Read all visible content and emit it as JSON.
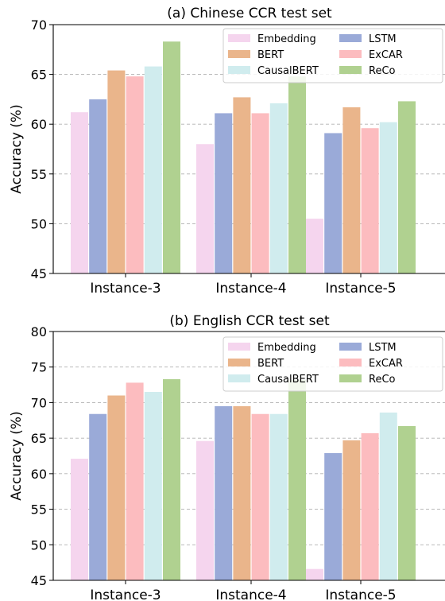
{
  "chart_data": [
    {
      "type": "bar",
      "title": "(a) Chinese CCR test set",
      "ylabel": "Accuracy (%)",
      "xlabel": "",
      "ylim": [
        45,
        70
      ],
      "yticks": [
        45,
        50,
        55,
        60,
        65,
        70
      ],
      "grid": "horizontal dashed",
      "legend_position": "top-right",
      "categories": [
        "Instance-3",
        "Instance-4",
        "Instance-5"
      ],
      "series": [
        {
          "name": "Embedding",
          "color": "#f5d5ee",
          "values": [
            61.2,
            58.0,
            50.5
          ]
        },
        {
          "name": "LSTM",
          "color": "#9aaad8",
          "values": [
            62.5,
            61.1,
            59.1
          ]
        },
        {
          "name": "BERT",
          "color": "#eab58b",
          "values": [
            65.4,
            62.7,
            61.7
          ]
        },
        {
          "name": "ExCAR",
          "color": "#fcbcbf",
          "values": [
            64.8,
            61.1,
            59.6
          ]
        },
        {
          "name": "CausalBERT",
          "color": "#d0ecee",
          "values": [
            65.8,
            62.1,
            60.2
          ]
        },
        {
          "name": "ReCo",
          "color": "#b0d190",
          "values": [
            68.3,
            64.8,
            62.3
          ]
        }
      ]
    },
    {
      "type": "bar",
      "title": "(b) English CCR test set",
      "ylabel": "Accuracy (%)",
      "xlabel": "",
      "ylim": [
        45,
        80
      ],
      "yticks": [
        45,
        50,
        55,
        60,
        65,
        70,
        75,
        80
      ],
      "grid": "horizontal dashed",
      "legend_position": "top-right",
      "categories": [
        "Instance-3",
        "Instance-4",
        "Instance-5"
      ],
      "series": [
        {
          "name": "Embedding",
          "color": "#f5d5ee",
          "values": [
            62.1,
            64.6,
            46.6
          ]
        },
        {
          "name": "LSTM",
          "color": "#9aaad8",
          "values": [
            68.4,
            69.5,
            62.9
          ]
        },
        {
          "name": "BERT",
          "color": "#eab58b",
          "values": [
            71.0,
            69.5,
            64.7
          ]
        },
        {
          "name": "ExCAR",
          "color": "#fcbcbf",
          "values": [
            72.8,
            68.4,
            65.7
          ]
        },
        {
          "name": "CausalBERT",
          "color": "#d0ecee",
          "values": [
            71.5,
            68.4,
            68.6
          ]
        },
        {
          "name": "ReCo",
          "color": "#b0d190",
          "values": [
            73.3,
            73.2,
            66.7
          ]
        }
      ]
    }
  ]
}
